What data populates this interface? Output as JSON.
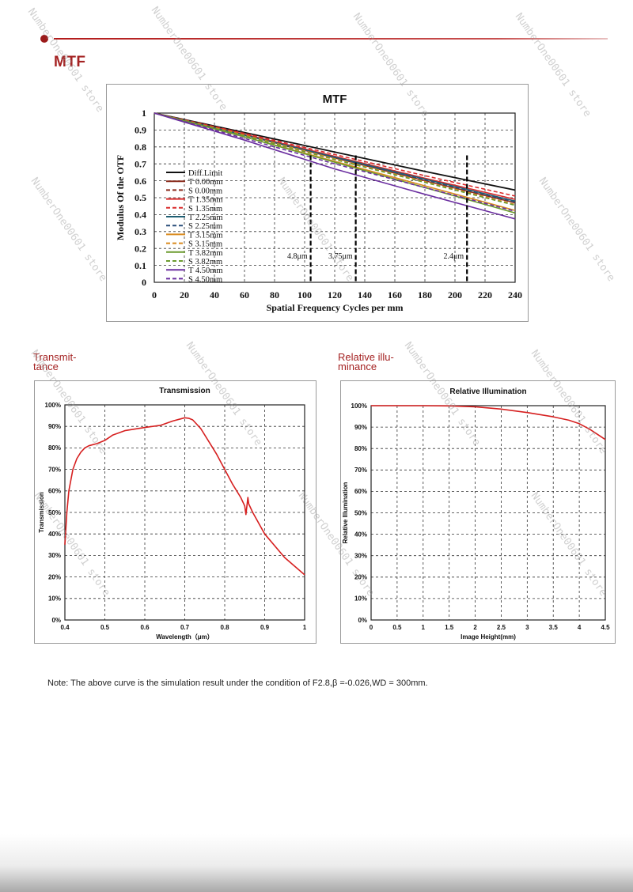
{
  "watermark": "NumberOne00601 store",
  "sections": {
    "mtf": "MTF",
    "transmittance": "Transmit-\ntance",
    "illumination": "Relative illu-\nminance"
  },
  "note": "Note: The above curve is the simulation result under the condition of F2.8,β =-0.026,WD = 300mm.",
  "colors": {
    "accent": "#a42222"
  },
  "chart_data": [
    {
      "type": "line",
      "title": "MTF",
      "xlabel": "Spatial Frequency Cycles per mm",
      "ylabel": "Modulus Of the OTF",
      "xlim": [
        0,
        240
      ],
      "ylim": [
        0,
        1
      ],
      "x_ticks": [
        "0",
        "20",
        "40",
        "60",
        "80",
        "100",
        "120",
        "140",
        "160",
        "180",
        "200",
        "220",
        "240"
      ],
      "y_ticks": [
        "0",
        "0.1",
        "0.2",
        "0.3",
        "0.4",
        "0.5",
        "0.6",
        "0.7",
        "0.8",
        "0.9",
        "1"
      ],
      "grid": "dashed",
      "legend": "left",
      "x": [
        0,
        60,
        120,
        180,
        240
      ],
      "series": [
        {
          "name": "Diff.Limit",
          "color": "#111111",
          "dash": false,
          "values": [
            1.0,
            0.885,
            0.77,
            0.655,
            0.545
          ]
        },
        {
          "name": "T 0.00mm",
          "color": "#8b2d1f",
          "dash": false,
          "values": [
            1.0,
            0.87,
            0.735,
            0.6,
            0.47
          ]
        },
        {
          "name": "S 0.00mm",
          "color": "#8b2d1f",
          "dash": true,
          "values": [
            1.0,
            0.87,
            0.735,
            0.6,
            0.47
          ]
        },
        {
          "name": "T 1.35mm",
          "color": "#d92b2b",
          "dash": false,
          "values": [
            1.0,
            0.875,
            0.745,
            0.615,
            0.49
          ]
        },
        {
          "name": "S 1.35mm",
          "color": "#d92b2b",
          "dash": true,
          "values": [
            1.0,
            0.88,
            0.755,
            0.63,
            0.51
          ]
        },
        {
          "name": "T 2.25mm",
          "color": "#1e5f73",
          "dash": false,
          "values": [
            1.0,
            0.87,
            0.74,
            0.61,
            0.48
          ]
        },
        {
          "name": "S 2.25mm",
          "color": "#2a4f7a",
          "dash": true,
          "values": [
            1.0,
            0.865,
            0.735,
            0.605,
            0.475
          ]
        },
        {
          "name": "T 3.15mm",
          "color": "#d98a1e",
          "dash": false,
          "values": [
            1.0,
            0.86,
            0.715,
            0.57,
            0.425
          ]
        },
        {
          "name": "S 3.15mm",
          "color": "#d98a1e",
          "dash": true,
          "values": [
            1.0,
            0.87,
            0.73,
            0.595,
            0.46
          ]
        },
        {
          "name": "T 3.82mm",
          "color": "#6b9b2f",
          "dash": false,
          "values": [
            1.0,
            0.86,
            0.71,
            0.56,
            0.41
          ]
        },
        {
          "name": "S 3.82mm",
          "color": "#6b9b2f",
          "dash": true,
          "values": [
            1.0,
            0.865,
            0.725,
            0.59,
            0.455
          ]
        },
        {
          "name": "T 4.50mm",
          "color": "#6b2fa0",
          "dash": false,
          "values": [
            1.0,
            0.84,
            0.67,
            0.52,
            0.375
          ]
        },
        {
          "name": "S 4.50mm",
          "color": "#6b2fa0",
          "dash": true,
          "values": [
            1.0,
            0.85,
            0.7,
            0.56,
            0.42
          ]
        }
      ],
      "markers": [
        {
          "x": 104,
          "label": "4.8μm"
        },
        {
          "x": 134,
          "label": "3.75μm"
        },
        {
          "x": 208,
          "label": "2.4μm"
        }
      ]
    },
    {
      "type": "line",
      "title": "Transmission",
      "xlabel": "Wavelength（μm）",
      "ylabel": "Transmission",
      "xlim": [
        0.4,
        1
      ],
      "ylim": [
        0,
        100
      ],
      "x_ticks": [
        "0.4",
        "0.5",
        "0.6",
        "0.7",
        "0.8",
        "0.9",
        "1"
      ],
      "y_ticks": [
        "0%",
        "10%",
        "20%",
        "30%",
        "40%",
        "50%",
        "60%",
        "70%",
        "80%",
        "90%",
        "100%"
      ],
      "grid": "dashed",
      "series": [
        {
          "color": "#d62020",
          "x": [
            0.4,
            0.405,
            0.41,
            0.42,
            0.43,
            0.44,
            0.45,
            0.46,
            0.47,
            0.48,
            0.5,
            0.52,
            0.55,
            0.6,
            0.64,
            0.67,
            0.69,
            0.7,
            0.71,
            0.72,
            0.74,
            0.76,
            0.78,
            0.8,
            0.82,
            0.84,
            0.85,
            0.853,
            0.858,
            0.86,
            0.87,
            0.9,
            0.95,
            1.0
          ],
          "values": [
            35,
            50,
            60,
            70,
            75,
            78,
            80,
            81,
            81.5,
            82,
            83.5,
            86,
            88,
            89.5,
            90.5,
            92.5,
            93.5,
            94,
            93.8,
            93,
            89,
            83,
            77,
            70,
            63,
            57,
            53,
            49,
            57,
            54,
            50,
            40,
            29,
            21
          ]
        }
      ]
    },
    {
      "type": "line",
      "title": "Relative Illumination",
      "xlabel": "Image Height(mm)",
      "ylabel": "Relative Illumination",
      "xlim": [
        0,
        4.5
      ],
      "ylim": [
        0,
        100
      ],
      "x_ticks": [
        "0",
        "0.5",
        "1",
        "1.5",
        "2",
        "2.5",
        "3",
        "3.5",
        "4",
        "4.5"
      ],
      "y_ticks": [
        "0%",
        "10%",
        "20%",
        "30%",
        "40%",
        "50%",
        "60%",
        "70%",
        "80%",
        "90%",
        "100%"
      ],
      "grid": "dashed",
      "series": [
        {
          "color": "#d62020",
          "x": [
            0,
            0.5,
            1.0,
            1.5,
            2.0,
            2.5,
            3.0,
            3.5,
            3.8,
            4.0,
            4.2,
            4.5
          ],
          "values": [
            100,
            100,
            100,
            99.9,
            99.5,
            98.4,
            96.8,
            94.8,
            93.2,
            91.6,
            89.0,
            84.2
          ]
        }
      ]
    }
  ]
}
